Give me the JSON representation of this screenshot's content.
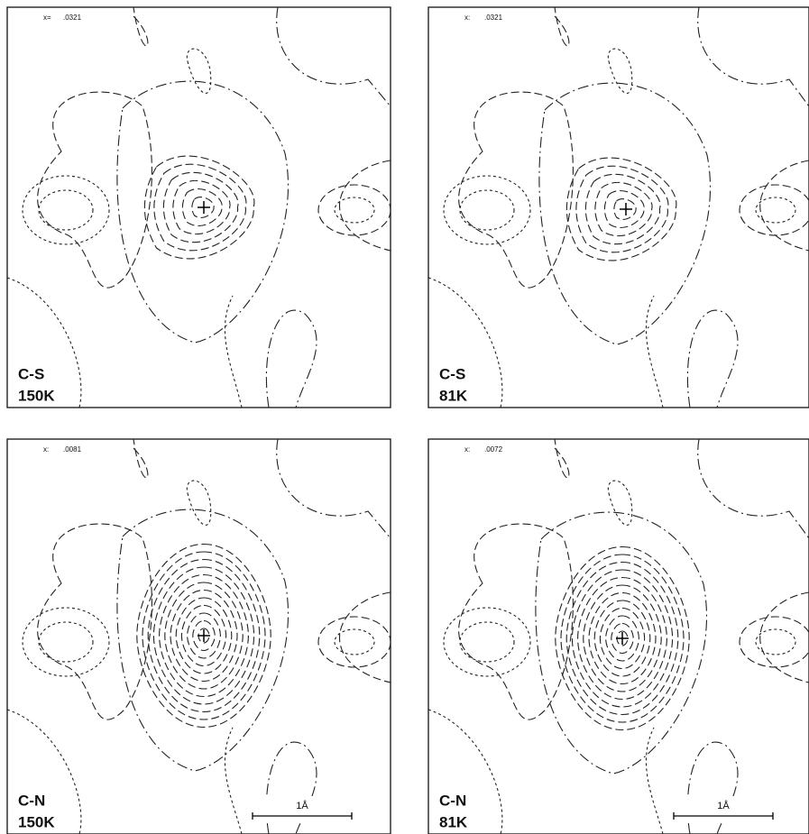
{
  "panels": [
    {
      "x_label": "x=",
      "x_value": ".0321",
      "bond": "C-S",
      "temperature": "150K"
    },
    {
      "x_label": "x:",
      "x_value": ".0321",
      "bond": "C-S",
      "temperature": "81K"
    },
    {
      "x_label": "x:",
      "x_value": ".0081",
      "bond": "C-N",
      "temperature": "150K",
      "scale_bar": "1Å"
    },
    {
      "x_label": "x:",
      "x_value": ".0072",
      "bond": "C-N",
      "temperature": "81K",
      "scale_bar": "1Å"
    }
  ]
}
